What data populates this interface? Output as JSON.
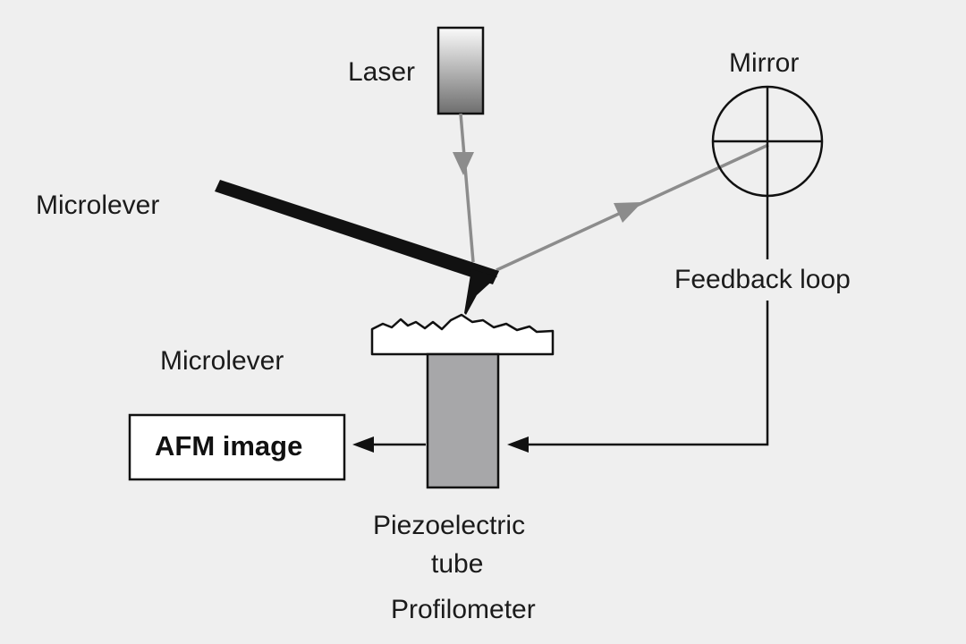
{
  "labels": {
    "laser": "Laser",
    "mirror": "Mirror",
    "microlever_top": "Microlever",
    "microlever_bottom": "Microlever",
    "feedback_loop": "Feedback loop",
    "afm_image": "AFM image",
    "piezo_line1": "Piezoelectric",
    "piezo_line2": "tube",
    "profilometer": "Profilometer"
  },
  "colors": {
    "background": "#efefef",
    "ink": "#111111",
    "beam": "#8c8c8c",
    "piezo_fill": "#a7a7a9",
    "laser_gradient_top": "#fafafa",
    "laser_gradient_bottom": "#6e6e6e"
  }
}
